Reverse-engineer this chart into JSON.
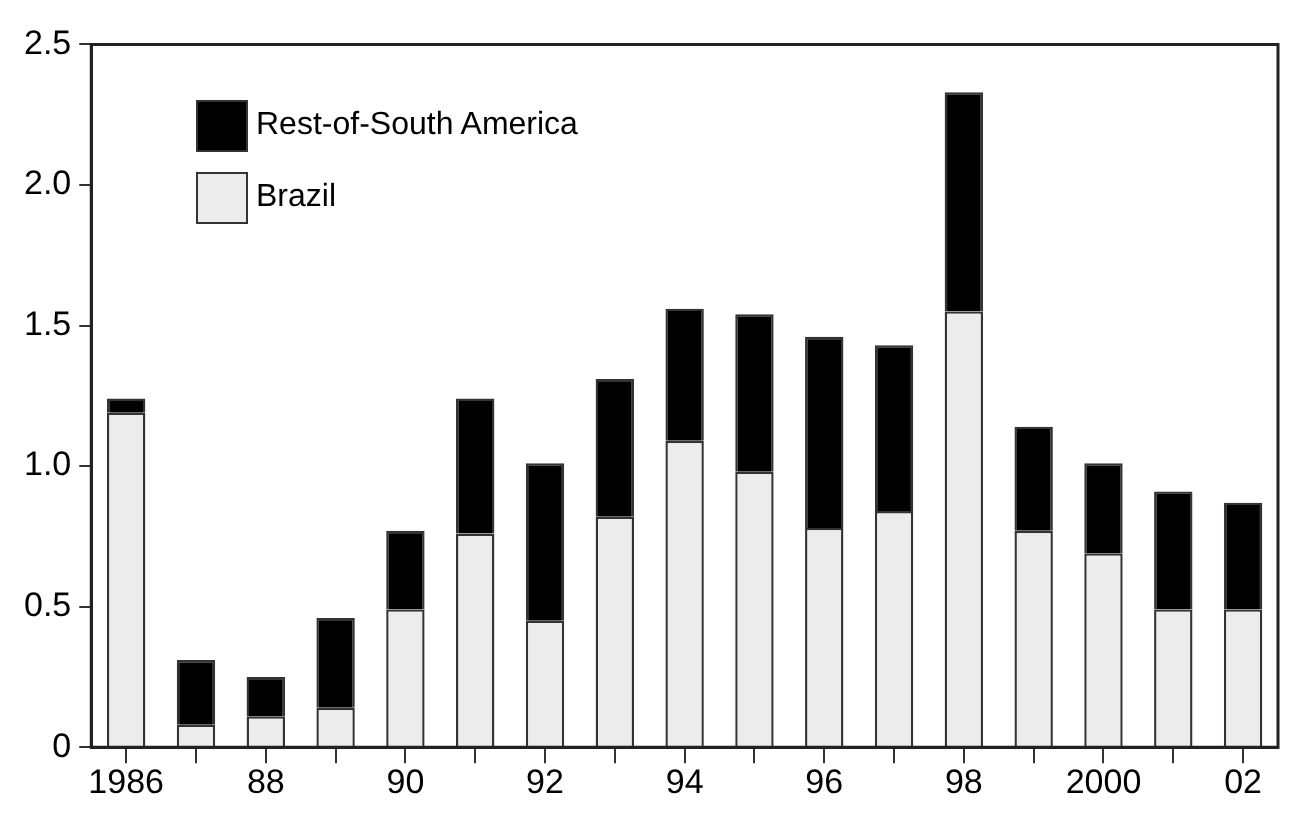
{
  "chart_data": {
    "type": "bar",
    "stacked": true,
    "legend": "top left",
    "grid": false,
    "categories": [
      "1986",
      null,
      "88",
      null,
      "90",
      null,
      "92",
      null,
      "94",
      null,
      "96",
      null,
      "98",
      null,
      "2000",
      null,
      "02"
    ],
    "series": [
      {
        "name": "Brazil",
        "color": "#ececec",
        "values": [
          1.19,
          0.08,
          0.11,
          0.14,
          0.49,
          0.76,
          0.45,
          0.82,
          1.09,
          0.98,
          0.78,
          0.84,
          1.55,
          0.77,
          0.69,
          0.49,
          0.49
        ]
      },
      {
        "name": "Rest-of-South America",
        "color": "#000000",
        "values": [
          0.05,
          0.23,
          0.14,
          0.32,
          0.28,
          0.48,
          0.56,
          0.49,
          0.47,
          0.56,
          0.68,
          0.59,
          0.78,
          0.37,
          0.32,
          0.42,
          0.38
        ]
      }
    ],
    "ylim": [
      0,
      2.5
    ],
    "yticks": [
      0,
      {
        "value": 0.5,
        "label": "0.5"
      },
      {
        "value": 1,
        "label": "1.0"
      },
      {
        "value": 1.5,
        "label": "1.5"
      },
      {
        "value": 2,
        "label": "2.0"
      },
      {
        "value": 2.5,
        "label": "2.5"
      }
    ]
  }
}
